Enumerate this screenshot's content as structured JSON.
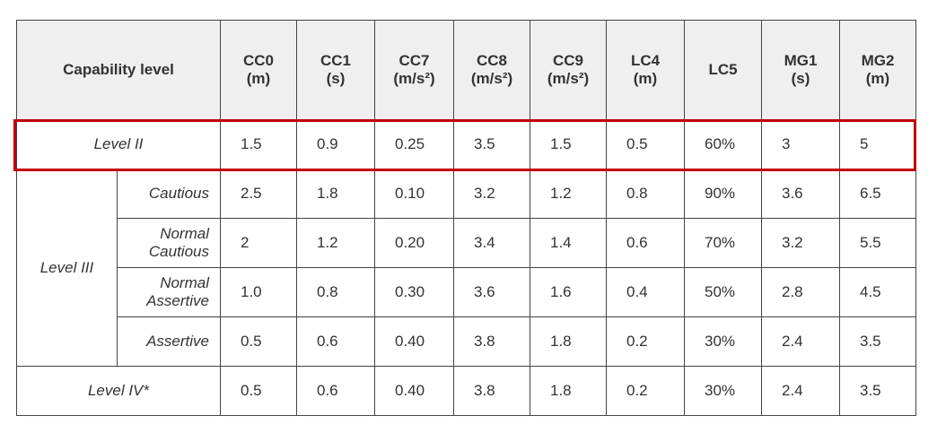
{
  "header": {
    "capability_level": "Capability level",
    "columns": [
      {
        "name": "CC0",
        "unit": "(m)"
      },
      {
        "name": "CC1",
        "unit": "(s)"
      },
      {
        "name": "CC7",
        "unit": "(m/s²)"
      },
      {
        "name": "CC8",
        "unit": "(m/s²)"
      },
      {
        "name": "CC9",
        "unit": "(m/s²)"
      },
      {
        "name": "LC4",
        "unit": "(m)"
      },
      {
        "name": "LC5"
      },
      {
        "name": "MG1",
        "unit": "(s)"
      },
      {
        "name": "MG2",
        "unit": "(m)"
      }
    ]
  },
  "level_ii": {
    "label": "Level II",
    "values": [
      "1.5",
      "0.9",
      "0.25",
      "3.5",
      "1.5",
      "0.5",
      "60%",
      "3",
      "5"
    ]
  },
  "level_iii": {
    "label": "Level III",
    "rows": [
      {
        "sublevel": "Cautious",
        "values": [
          "2.5",
          "1.8",
          "0.10",
          "3.2",
          "1.2",
          "0.8",
          "90%",
          "3.6",
          "6.5"
        ]
      },
      {
        "sublevel": "Normal Cautious",
        "values": [
          "2",
          "1.2",
          "0.20",
          "3.4",
          "1.4",
          "0.6",
          "70%",
          "3.2",
          "5.5"
        ]
      },
      {
        "sublevel": "Normal Assertive",
        "values": [
          "1.0",
          "0.8",
          "0.30",
          "3.6",
          "1.6",
          "0.4",
          "50%",
          "2.8",
          "4.5"
        ]
      },
      {
        "sublevel": "Assertive",
        "values": [
          "0.5",
          "0.6",
          "0.40",
          "3.8",
          "1.8",
          "0.2",
          "30%",
          "2.4",
          "3.5"
        ]
      }
    ]
  },
  "level_iv": {
    "label": "Level IV*",
    "values": [
      "0.5",
      "0.6",
      "0.40",
      "3.8",
      "1.8",
      "0.2",
      "30%",
      "2.4",
      "3.5"
    ]
  }
}
